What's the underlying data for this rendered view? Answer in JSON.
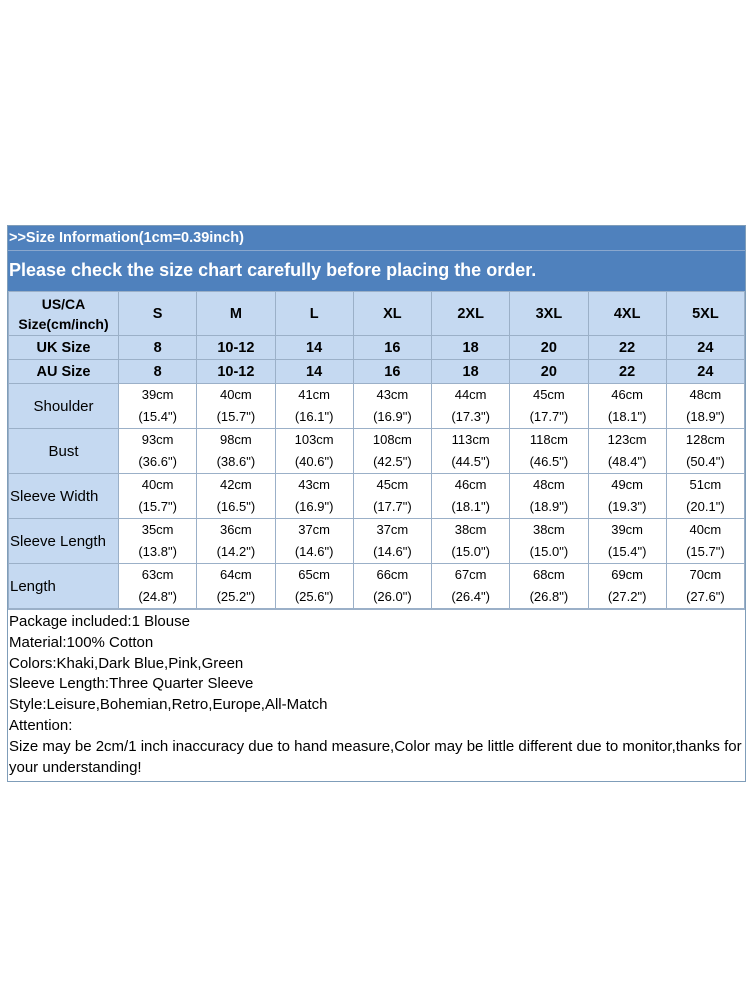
{
  "banner": {
    "info": ">>Size Information(1cm=0.39inch)",
    "notice": "Please check the size chart carefully before placing the order."
  },
  "header": {
    "first_line1": "US/CA",
    "first_line2": "Size(cm/inch)",
    "sizes": [
      "S",
      "M",
      "L",
      "XL",
      "2XL",
      "3XL",
      "4XL",
      "5XL"
    ]
  },
  "uk": {
    "label": "UK Size",
    "values": [
      "8",
      "10-12",
      "14",
      "16",
      "18",
      "20",
      "22",
      "24"
    ]
  },
  "au": {
    "label": "AU Size",
    "values": [
      "8",
      "10-12",
      "14",
      "16",
      "18",
      "20",
      "22",
      "24"
    ]
  },
  "rows": [
    {
      "label": "Shoulder",
      "cm": [
        "39cm",
        "40cm",
        "41cm",
        "43cm",
        "44cm",
        "45cm",
        "46cm",
        "48cm"
      ],
      "inch": [
        "(15.4\")",
        "(15.7\")",
        "(16.1\")",
        "(16.9\")",
        "(17.3\")",
        "(17.7\")",
        "(18.1\")",
        "(18.9\")"
      ]
    },
    {
      "label": "Bust",
      "cm": [
        "93cm",
        "98cm",
        "103cm",
        "108cm",
        "113cm",
        "118cm",
        "123cm",
        "128cm"
      ],
      "inch": [
        "(36.6\")",
        "(38.6\")",
        "(40.6\")",
        "(42.5\")",
        "(44.5\")",
        "(46.5\")",
        "(48.4\")",
        "(50.4\")"
      ]
    },
    {
      "label": "Sleeve Width",
      "cm": [
        "40cm",
        "42cm",
        "43cm",
        "45cm",
        "46cm",
        "48cm",
        "49cm",
        "51cm"
      ],
      "inch": [
        "(15.7\")",
        "(16.5\")",
        "(16.9\")",
        "(17.7\")",
        "(18.1\")",
        "(18.9\")",
        "(19.3\")",
        "(20.1\")"
      ]
    },
    {
      "label": "Sleeve Length",
      "cm": [
        "35cm",
        "36cm",
        "37cm",
        "37cm",
        "38cm",
        "38cm",
        "39cm",
        "40cm"
      ],
      "inch": [
        "(13.8\")",
        "(14.2\")",
        "(14.6\")",
        "(14.6\")",
        "(15.0\")",
        "(15.0\")",
        "(15.4\")",
        "(15.7\")"
      ]
    },
    {
      "label": "Length",
      "cm": [
        "63cm",
        "64cm",
        "65cm",
        "66cm",
        "67cm",
        "68cm",
        "69cm",
        "70cm"
      ],
      "inch": [
        "(24.8\")",
        "(25.2\")",
        "(25.6\")",
        "(26.0\")",
        "(26.4\")",
        "(26.8\")",
        "(27.2\")",
        "(27.6\")"
      ]
    }
  ],
  "notes": [
    "Package included:1 Blouse",
    "Material:100% Cotton",
    "Colors:Khaki,Dark Blue,Pink,Green",
    "Sleeve Length:Three Quarter Sleeve",
    "Style:Leisure,Bohemian,Retro,Europe,All-Match",
    "Attention:",
    "Size may be 2cm/1 inch inaccuracy due to hand measure,Color may be little different due to monitor,thanks for your understanding!"
  ],
  "colors": {
    "banner": "#4f81bd",
    "header_cell": "#c5d9f1",
    "border": "#9bb0c8"
  }
}
